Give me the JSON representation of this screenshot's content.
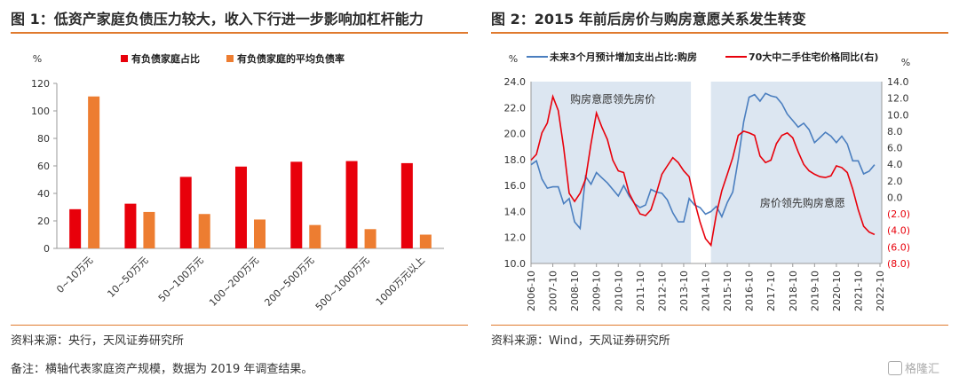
{
  "left": {
    "title": "图 1：低资产家庭负债压力较大，收入下行进一步影响加杠杆能力",
    "source": "资料来源：央行，天风证券研究所"
  },
  "right": {
    "title": "图 2：2015 年前后房价与购房意愿关系发生转变",
    "source": "资料来源：Wind，天风证券研究所"
  },
  "note": "备注：横轴代表家庭资产规模，数据为 2019 年调查结果。",
  "watermark": "格隆汇",
  "colors": {
    "red": "#e8000b",
    "orange": "#ed7d31",
    "blue": "#4a7ebf",
    "shade": "#dce6f1",
    "rule": "#e07a2e"
  },
  "chart_data": [
    {
      "type": "bar",
      "ylabel": "%",
      "ylim": [
        0,
        120
      ],
      "yticks": [
        0,
        20,
        40,
        60,
        80,
        100,
        120
      ],
      "grid": false,
      "legend_position": "top",
      "categories": [
        "0~10万元",
        "10~50万元",
        "50~100万元",
        "100~200万元",
        "200~500万元",
        "500~1000万元",
        "1000万元以上"
      ],
      "series": [
        {
          "name": "有负债家庭占比",
          "color": "#e8000b",
          "values": [
            28.5,
            32.5,
            52,
            59.5,
            63,
            63.5,
            62
          ]
        },
        {
          "name": "有负债家庭的平均负债率",
          "color": "#ed7d31",
          "values": [
            110.5,
            26.5,
            25,
            21,
            17,
            14,
            10
          ]
        }
      ]
    },
    {
      "type": "line",
      "left_unit": "%",
      "right_unit": "%",
      "ylim_left": [
        10,
        24
      ],
      "yticks_left": [
        "10.0",
        "12.0",
        "14.0",
        "16.0",
        "18.0",
        "20.0",
        "22.0",
        "24.0"
      ],
      "ylim_right": [
        -8,
        14
      ],
      "yticks_right": [
        "(8.0)",
        "(6.0)",
        "(4.0)",
        "(2.0)",
        "0.0",
        "2.0",
        "4.0",
        "6.0",
        "8.0",
        "10.0",
        "12.0",
        "14.0"
      ],
      "x_ticks": [
        "2006-10",
        "2007-10",
        "2008-10",
        "2009-10",
        "2010-10",
        "2011-10",
        "2012-10",
        "2013-10",
        "2014-10",
        "2015-10",
        "2016-10",
        "2017-10",
        "2018-10",
        "2019-10",
        "2020-10",
        "2021-10",
        "2022-10"
      ],
      "x_range": [
        2006.75,
        2022.83
      ],
      "shaded_regions": [
        {
          "from": 2006.75,
          "to": 2014.08,
          "label": "购房意愿领先房价"
        },
        {
          "from": 2015.0,
          "to": 2022.83,
          "label": "房价领先购房意愿"
        }
      ],
      "series": [
        {
          "name": "未来3个月预计增加支出占比:购房",
          "axis": "left",
          "color": "#4a7ebf",
          "x": [
            2006.75,
            2007.0,
            2007.25,
            2007.5,
            2007.75,
            2008.0,
            2008.25,
            2008.5,
            2008.75,
            2009.0,
            2009.25,
            2009.5,
            2009.75,
            2010.0,
            2010.25,
            2010.5,
            2010.75,
            2011.0,
            2011.25,
            2011.5,
            2011.75,
            2012.0,
            2012.25,
            2012.5,
            2012.75,
            2013.0,
            2013.25,
            2013.5,
            2013.75,
            2014.0,
            2014.25,
            2014.5,
            2014.75,
            2015.0,
            2015.25,
            2015.5,
            2015.75,
            2016.0,
            2016.25,
            2016.5,
            2016.75,
            2017.0,
            2017.25,
            2017.5,
            2017.75,
            2018.0,
            2018.25,
            2018.5,
            2018.75,
            2019.0,
            2019.25,
            2019.5,
            2019.75,
            2020.0,
            2020.25,
            2020.5,
            2020.75,
            2021.0,
            2021.25,
            2021.5,
            2021.75,
            2022.0,
            2022.25,
            2022.5
          ],
          "y": [
            17.6,
            17.9,
            16.5,
            15.8,
            15.9,
            15.9,
            14.6,
            15.0,
            13.2,
            12.7,
            16.7,
            16.1,
            17.0,
            16.6,
            16.2,
            15.7,
            15.2,
            16.0,
            15.2,
            14.6,
            14.3,
            14.5,
            15.7,
            15.5,
            15.4,
            14.9,
            13.9,
            13.2,
            13.2,
            15.0,
            14.5,
            14.3,
            13.8,
            14.0,
            14.4,
            13.6,
            14.7,
            15.5,
            18.0,
            20.9,
            22.8,
            23.0,
            22.5,
            23.1,
            22.9,
            22.8,
            22.3,
            21.5,
            21.0,
            20.5,
            20.8,
            20.3,
            19.3,
            19.7,
            20.1,
            19.8,
            19.3,
            19.8,
            19.2,
            17.9,
            17.9,
            16.9,
            17.1,
            17.6
          ]
        },
        {
          "name": "70大中二手住宅价格同比(右)",
          "axis": "right",
          "color": "#e8000b",
          "x": [
            2006.75,
            2007.0,
            2007.25,
            2007.5,
            2007.75,
            2008.0,
            2008.25,
            2008.5,
            2008.75,
            2009.0,
            2009.25,
            2009.5,
            2009.75,
            2010.0,
            2010.25,
            2010.5,
            2010.75,
            2011.0,
            2011.25,
            2011.5,
            2011.75,
            2012.0,
            2012.25,
            2012.5,
            2012.75,
            2013.0,
            2013.25,
            2013.5,
            2013.75,
            2014.0,
            2014.25,
            2014.5,
            2014.75,
            2015.0,
            2015.25,
            2015.5,
            2015.75,
            2016.0,
            2016.25,
            2016.5,
            2016.75,
            2017.0,
            2017.25,
            2017.5,
            2017.75,
            2018.0,
            2018.25,
            2018.5,
            2018.75,
            2019.0,
            2019.25,
            2019.5,
            2019.75,
            2020.0,
            2020.25,
            2020.5,
            2020.75,
            2021.0,
            2021.25,
            2021.5,
            2021.75,
            2022.0,
            2022.25,
            2022.5
          ],
          "y": [
            4.5,
            5.2,
            7.8,
            9.0,
            12.2,
            10.5,
            6.0,
            0.5,
            -0.5,
            0.5,
            2.2,
            6.5,
            10.2,
            8.5,
            7.0,
            4.5,
            3.2,
            3.0,
            0.5,
            -0.8,
            -2.0,
            -2.2,
            -1.5,
            0.5,
            2.8,
            3.8,
            4.8,
            4.2,
            3.2,
            2.5,
            -0.5,
            -3.0,
            -5.0,
            -5.8,
            -2.0,
            0.8,
            2.8,
            4.8,
            7.5,
            8.0,
            7.8,
            7.5,
            5.0,
            4.2,
            4.5,
            6.5,
            7.5,
            7.8,
            7.2,
            5.5,
            4.0,
            3.2,
            2.8,
            2.5,
            2.4,
            2.6,
            3.8,
            3.6,
            3.0,
            1.0,
            -1.5,
            -3.5,
            -4.2,
            -4.5
          ]
        }
      ]
    }
  ]
}
